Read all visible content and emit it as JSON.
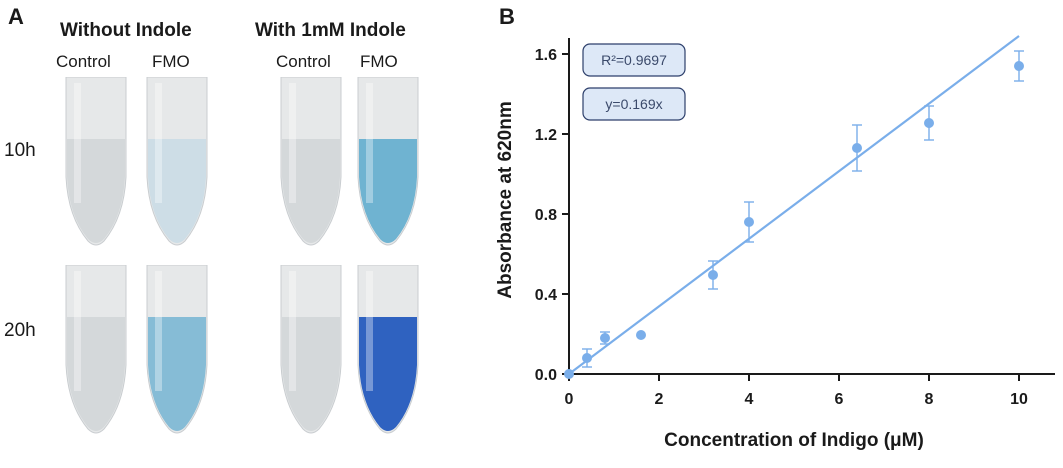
{
  "panel_a": {
    "letter": "A",
    "groups": [
      {
        "title": "Without Indole",
        "columns": [
          "Control",
          "FMO"
        ]
      },
      {
        "title": "With 1mM Indole",
        "columns": [
          "Control",
          "FMO"
        ]
      }
    ],
    "rows": [
      "10h",
      "20h"
    ],
    "tubes": [
      {
        "row": "10h",
        "condition": "Without Indole - Control",
        "liquid_color": "#d4d8da"
      },
      {
        "row": "10h",
        "condition": "Without Indole - FMO",
        "liquid_color": "#cddde6"
      },
      {
        "row": "10h",
        "condition": "With 1mM Indole - Control",
        "liquid_color": "#d4d8da"
      },
      {
        "row": "10h",
        "condition": "With 1mM Indole - FMO",
        "liquid_color": "#6fb3d1"
      },
      {
        "row": "20h",
        "condition": "Without Indole - Control",
        "liquid_color": "#d4d8da"
      },
      {
        "row": "20h",
        "condition": "Without Indole - FMO",
        "liquid_color": "#86bcd6"
      },
      {
        "row": "20h",
        "condition": "With 1mM Indole - Control",
        "liquid_color": "#d4d8da"
      },
      {
        "row": "20h",
        "condition": "With 1mM Indole - FMO",
        "liquid_color": "#2f62c0"
      }
    ]
  },
  "chart_data": {
    "panel_letter": "B",
    "type": "scatter",
    "xlabel": "Concentration of Indigo (μM)",
    "ylabel": "Absorbance at 620nm",
    "xlim": [
      0,
      10.8
    ],
    "ylim": [
      0,
      1.65
    ],
    "xticks": [
      0,
      2,
      4,
      6,
      8,
      10
    ],
    "xtick_labels": [
      "0",
      "2",
      "4",
      "6",
      "8",
      "10"
    ],
    "yticks": [
      0.0,
      0.4,
      0.8,
      1.2,
      1.6
    ],
    "ytick_labels": [
      "0.0",
      "0.4",
      "0.8",
      "1.2",
      "1.6"
    ],
    "grid": false,
    "color": "#7aaeea",
    "points": [
      {
        "x": 0.0,
        "y": 0.0,
        "err": 0.0
      },
      {
        "x": 0.4,
        "y": 0.08,
        "err": 0.045
      },
      {
        "x": 0.8,
        "y": 0.18,
        "err": 0.03
      },
      {
        "x": 1.6,
        "y": 0.195,
        "err": 0.0
      },
      {
        "x": 3.2,
        "y": 0.495,
        "err": 0.07
      },
      {
        "x": 4.0,
        "y": 0.76,
        "err": 0.1
      },
      {
        "x": 6.4,
        "y": 1.13,
        "err": 0.115
      },
      {
        "x": 8.0,
        "y": 1.255,
        "err": 0.085
      },
      {
        "x": 10.0,
        "y": 1.54,
        "err": 0.075
      }
    ],
    "fit": {
      "slope": 0.169,
      "x_range": [
        0,
        10
      ]
    },
    "annotations": [
      "R²=0.9697",
      "y=0.169x"
    ]
  }
}
